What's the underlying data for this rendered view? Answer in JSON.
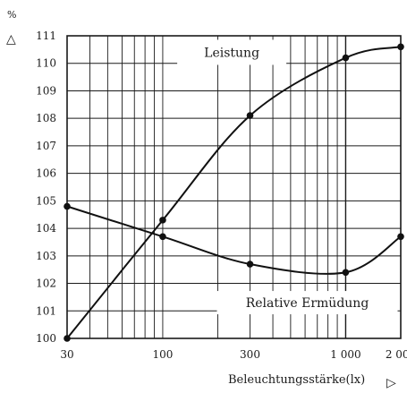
{
  "chart_data": {
    "type": "line",
    "title": "",
    "ylabel": "%",
    "xlabel": "Beleuchtungsstärke(lx)",
    "x_scale": "log",
    "xlim": [
      30,
      2000
    ],
    "ylim": [
      100,
      111
    ],
    "grid": true,
    "x_ticks": [
      30,
      100,
      300,
      1000,
      2000
    ],
    "x_tick_labels": [
      "30",
      "100",
      "300",
      "1 000",
      "2 000"
    ],
    "y_ticks": [
      100,
      101,
      102,
      103,
      104,
      105,
      106,
      107,
      108,
      109,
      110,
      111
    ],
    "y_tick_labels": [
      "100",
      "101",
      "102",
      "103",
      "104",
      "105",
      "106",
      "107",
      "108",
      "109",
      "110",
      "111"
    ],
    "series": [
      {
        "name": "Leistung",
        "x": [
          30,
          100,
          300,
          1000,
          2000
        ],
        "values": [
          100.0,
          104.3,
          108.1,
          110.2,
          110.6
        ]
      },
      {
        "name": "Relative Ermüdung",
        "x": [
          30,
          100,
          300,
          1000,
          2000
        ],
        "values": [
          104.8,
          103.7,
          102.7,
          102.4,
          103.7
        ]
      }
    ],
    "x_arrow_symbol": "▷",
    "y_arrow_symbol": "△"
  }
}
